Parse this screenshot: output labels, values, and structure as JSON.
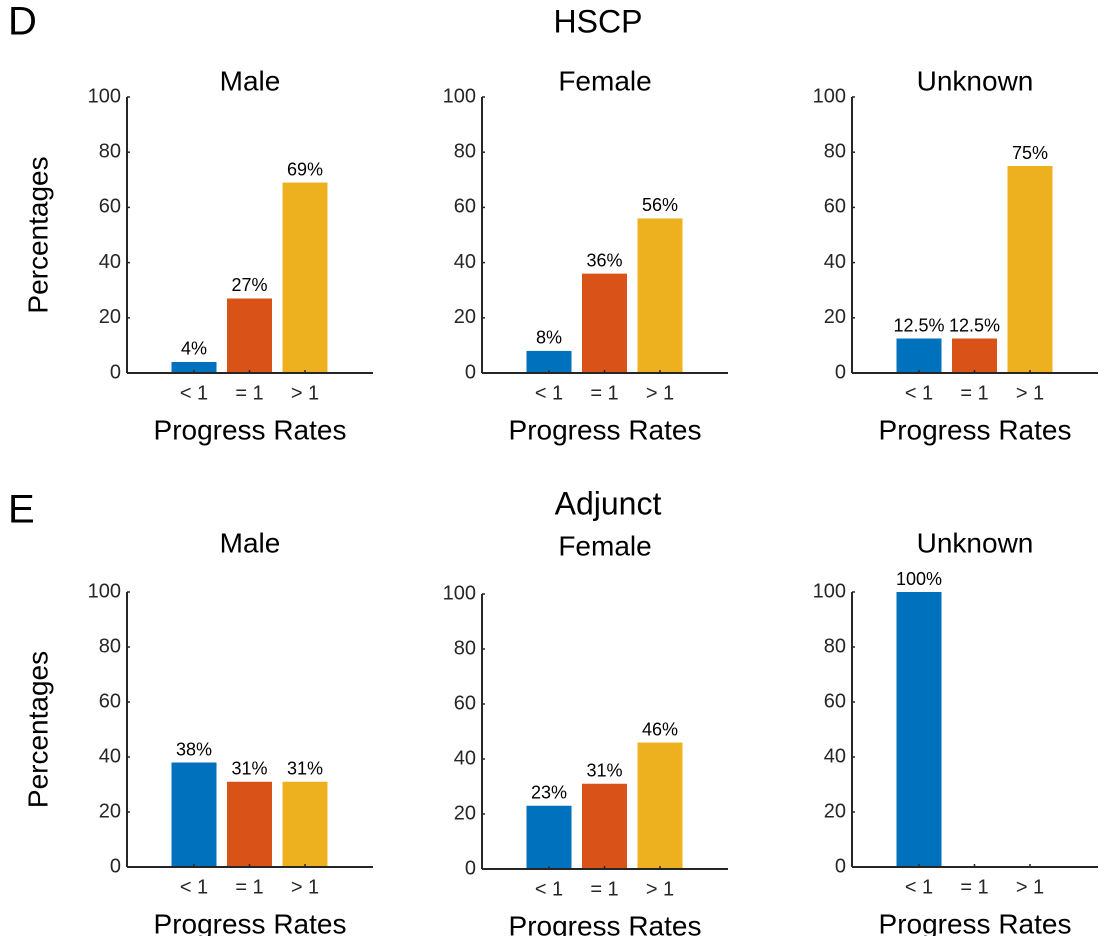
{
  "figure": {
    "panels": [
      {
        "letter": "D",
        "title": "HSCP"
      },
      {
        "letter": "E",
        "title": "Adjunct"
      }
    ]
  },
  "chart_data": [
    {
      "type": "bar",
      "title": "Male",
      "ylabel": "Percentages",
      "xlabel": "Progress Rates",
      "categories": [
        "< 1",
        "= 1",
        "> 1"
      ],
      "values": [
        4,
        27,
        69
      ],
      "value_labels": [
        "4%",
        "27%",
        "69%"
      ],
      "colors": [
        "#0072bd",
        "#d95319",
        "#edb120"
      ],
      "ylim": [
        0,
        100
      ],
      "yticks": [
        0,
        20,
        40,
        60,
        80,
        100
      ]
    },
    {
      "type": "bar",
      "title": "Female",
      "xlabel": "Progress Rates",
      "categories": [
        "< 1",
        "= 1",
        "> 1"
      ],
      "values": [
        8,
        36,
        56
      ],
      "value_labels": [
        "8%",
        "36%",
        "56%"
      ],
      "colors": [
        "#0072bd",
        "#d95319",
        "#edb120"
      ],
      "ylim": [
        0,
        100
      ],
      "yticks": [
        0,
        20,
        40,
        60,
        80,
        100
      ]
    },
    {
      "type": "bar",
      "title": "Unknown",
      "xlabel": "Progress Rates",
      "categories": [
        "< 1",
        "= 1",
        "> 1"
      ],
      "values": [
        12.5,
        12.5,
        75
      ],
      "value_labels": [
        "12.5%",
        "12.5%",
        "75%"
      ],
      "colors": [
        "#0072bd",
        "#d95319",
        "#edb120"
      ],
      "ylim": [
        0,
        100
      ],
      "yticks": [
        0,
        20,
        40,
        60,
        80,
        100
      ]
    },
    {
      "type": "bar",
      "title": "Male",
      "ylabel": "Percentages",
      "xlabel": "Progress Rates",
      "categories": [
        "< 1",
        "= 1",
        "> 1"
      ],
      "values": [
        38,
        31,
        31
      ],
      "value_labels": [
        "38%",
        "31%",
        "31%"
      ],
      "colors": [
        "#0072bd",
        "#d95319",
        "#edb120"
      ],
      "ylim": [
        0,
        100
      ],
      "yticks": [
        0,
        20,
        40,
        60,
        80,
        100
      ]
    },
    {
      "type": "bar",
      "title": "Female",
      "xlabel": "Progress Rates",
      "categories": [
        "< 1",
        "= 1",
        "> 1"
      ],
      "values": [
        23,
        31,
        46
      ],
      "value_labels": [
        "23%",
        "31%",
        "46%"
      ],
      "colors": [
        "#0072bd",
        "#d95319",
        "#edb120"
      ],
      "ylim": [
        0,
        100
      ],
      "yticks": [
        0,
        20,
        40,
        60,
        80,
        100
      ]
    },
    {
      "type": "bar",
      "title": "Unknown",
      "xlabel": "Progress Rates",
      "categories": [
        "< 1",
        "= 1",
        "> 1"
      ],
      "values": [
        100,
        0,
        0
      ],
      "value_labels": [
        "100%",
        null,
        null
      ],
      "colors": [
        "#0072bd",
        "#d95319",
        "#edb120"
      ],
      "ylim": [
        0,
        100
      ],
      "yticks": [
        0,
        20,
        40,
        60,
        80,
        100
      ]
    }
  ]
}
